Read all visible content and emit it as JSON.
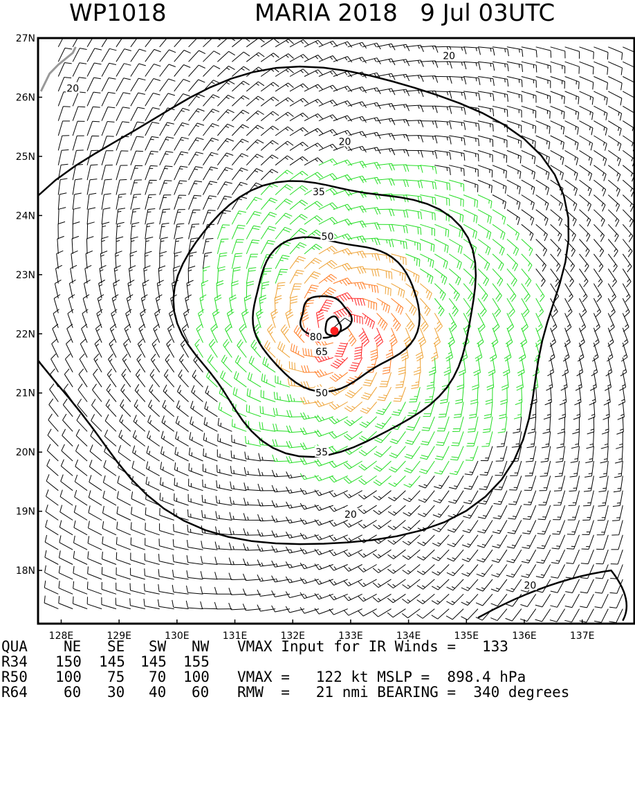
{
  "chart_data": {
    "type": "wind-barb-map",
    "title_left": "WP1018",
    "title_right": "MARIA 2018   9 Jul 03UTC",
    "x_axis": {
      "unit": "degrees E",
      "range": [
        127.6,
        137.9
      ],
      "ticks": [
        {
          "value": 128,
          "label": "128E"
        },
        {
          "value": 129,
          "label": "129E"
        },
        {
          "value": 130,
          "label": "130E"
        },
        {
          "value": 131,
          "label": "131E"
        },
        {
          "value": 132,
          "label": "132E"
        },
        {
          "value": 133,
          "label": "133E"
        },
        {
          "value": 134,
          "label": "134E"
        },
        {
          "value": 135,
          "label": "135E"
        },
        {
          "value": 136,
          "label": "136E"
        },
        {
          "value": 137,
          "label": "137E"
        }
      ]
    },
    "y_axis": {
      "unit": "degrees N",
      "range": [
        17.1,
        27.0
      ],
      "ticks": [
        {
          "value": 27,
          "label": "27N"
        },
        {
          "value": 26,
          "label": "26N"
        },
        {
          "value": 25,
          "label": "25N"
        },
        {
          "value": 24,
          "label": "24N"
        },
        {
          "value": 23,
          "label": "23N"
        },
        {
          "value": 22,
          "label": "22N"
        },
        {
          "value": 21,
          "label": "21N"
        },
        {
          "value": 20,
          "label": "20N"
        },
        {
          "value": 19,
          "label": "19N"
        },
        {
          "value": 18,
          "label": "18N"
        }
      ]
    },
    "storm_center": {
      "lon": 132.72,
      "lat": 22.05
    },
    "contour_levels": [
      20,
      35,
      50,
      65,
      80
    ],
    "contour_labels": [
      {
        "text": "20",
        "lon": 128.2,
        "lat": 26.15
      },
      {
        "text": "20",
        "lon": 134.7,
        "lat": 26.7
      },
      {
        "text": "20",
        "lon": 132.9,
        "lat": 25.25
      },
      {
        "text": "20",
        "lon": 133.0,
        "lat": 18.95
      },
      {
        "text": "20",
        "lon": 136.1,
        "lat": 17.75
      },
      {
        "text": "35",
        "lon": 132.45,
        "lat": 24.4
      },
      {
        "text": "35",
        "lon": 132.5,
        "lat": 20.0
      },
      {
        "text": "50",
        "lon": 132.6,
        "lat": 23.65
      },
      {
        "text": "50",
        "lon": 132.5,
        "lat": 21.0
      },
      {
        "text": "65",
        "lon": 132.5,
        "lat": 21.7
      },
      {
        "text": "80",
        "lon": 132.4,
        "lat": 21.95
      }
    ],
    "speed_colors": {
      "lt34": "#000000",
      "34to49": "#22dd22",
      "50to63": "#eea030",
      "64to79": "#ff7a20",
      "ge80": "#ff2020"
    },
    "land_color": "#999999"
  },
  "info": {
    "header": [
      "QUA",
      "NE",
      "SE",
      "SW",
      "NW"
    ],
    "vmax_input": "VMAX Input for IR Winds =   133",
    "r34": [
      "R34",
      "150",
      "145",
      "145",
      "155"
    ],
    "r50": [
      "R50",
      "100",
      "75",
      "70",
      "100"
    ],
    "r64": [
      "R64",
      "60",
      "30",
      "40",
      "60"
    ],
    "vmax_line": "VMAX =   122 kt MSLP =  898.4 hPa",
    "rmw_line": "RMW  =   21 nmi BEARING =  340 degrees"
  }
}
